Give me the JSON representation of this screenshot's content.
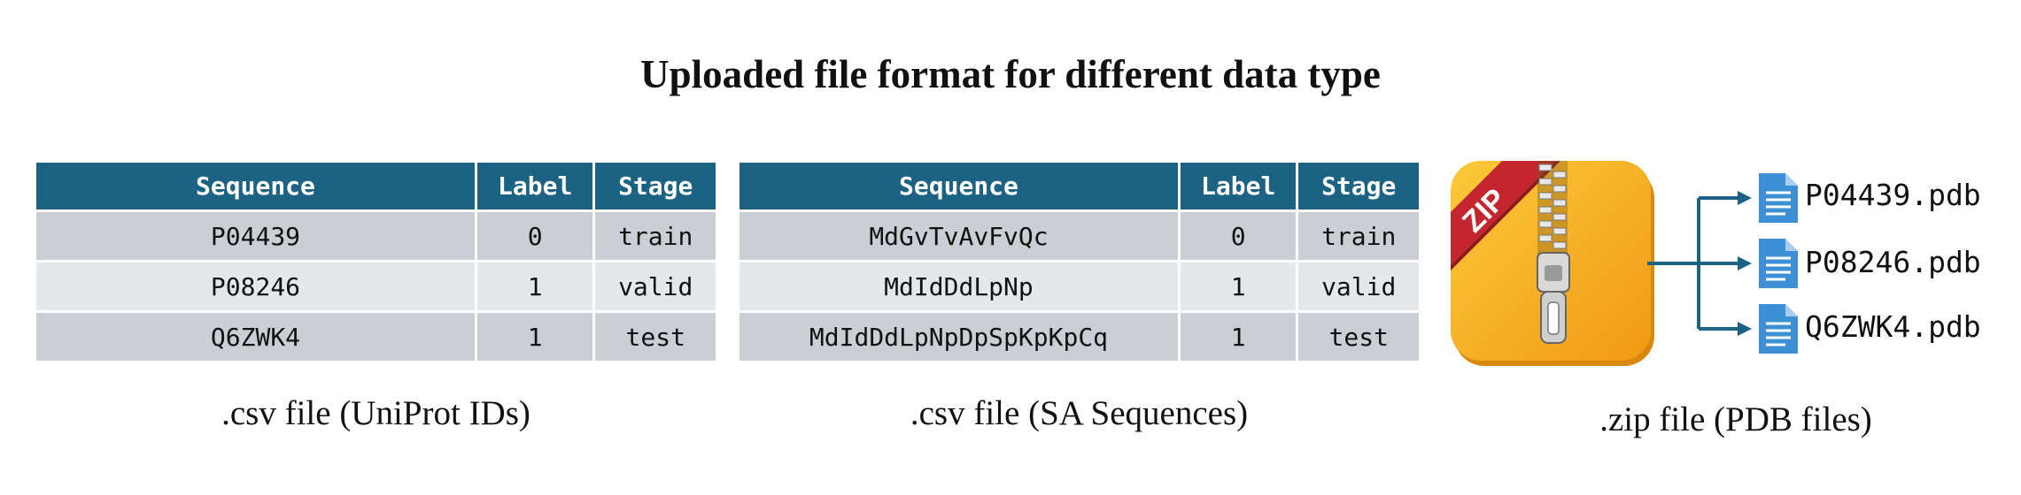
{
  "title": "Uploaded file format for different data type",
  "headers": [
    "Sequence",
    "Label",
    "Stage"
  ],
  "table1": {
    "rows": [
      [
        "P04439",
        "0",
        "train"
      ],
      [
        "P08246",
        "1",
        "valid"
      ],
      [
        "Q6ZWK4",
        "1",
        "test"
      ]
    ],
    "caption": ".csv file (UniProt IDs)"
  },
  "table2": {
    "rows": [
      [
        "MdGvTvAvFvQc",
        "0",
        "train"
      ],
      [
        "MdIdDdLpNp",
        "1",
        "valid"
      ],
      [
        "MdIdDdLpNpDpSpKpKpCq",
        "1",
        "test"
      ]
    ],
    "caption": ".csv file (SA Sequences)"
  },
  "zip": {
    "icon_label": "ZIP",
    "files": [
      "P04439.pdb",
      "P08246.pdb",
      "Q6ZWK4.pdb"
    ],
    "caption": ".zip file (PDB files)",
    "colors": {
      "folder": "#f7b21e",
      "ribbon": "#c3262e",
      "arrow": "#1b6283",
      "doc": "#3d8fd6"
    }
  }
}
